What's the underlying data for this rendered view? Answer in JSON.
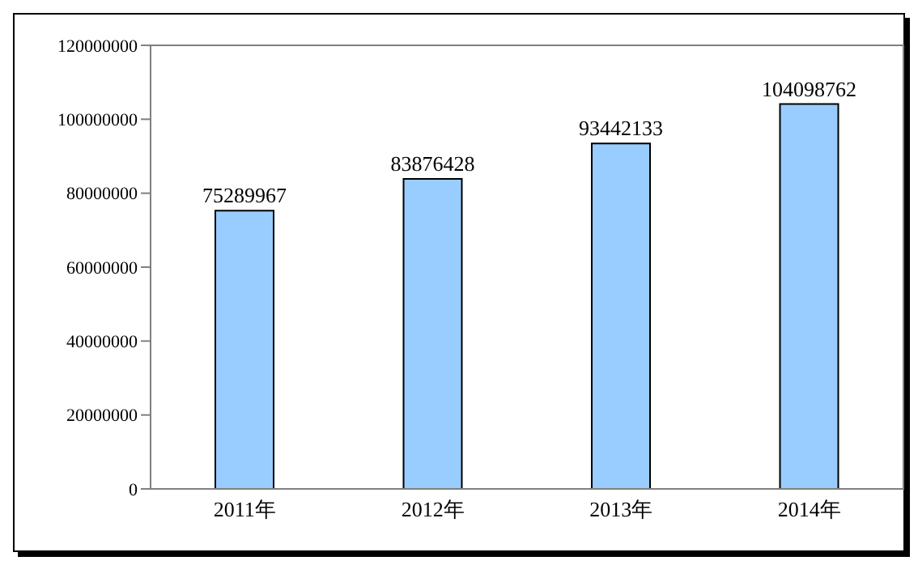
{
  "chart_data": {
    "type": "bar",
    "categories": [
      "2011年",
      "2012年",
      "2013年",
      "2014年"
    ],
    "values": [
      75289967,
      83876428,
      93442133,
      104098762
    ],
    "color": "#99ccff",
    "ylim": [
      0,
      120000000
    ],
    "yticks": [
      0,
      20000000,
      40000000,
      60000000,
      80000000,
      100000000,
      120000000
    ],
    "data_labels": true
  }
}
